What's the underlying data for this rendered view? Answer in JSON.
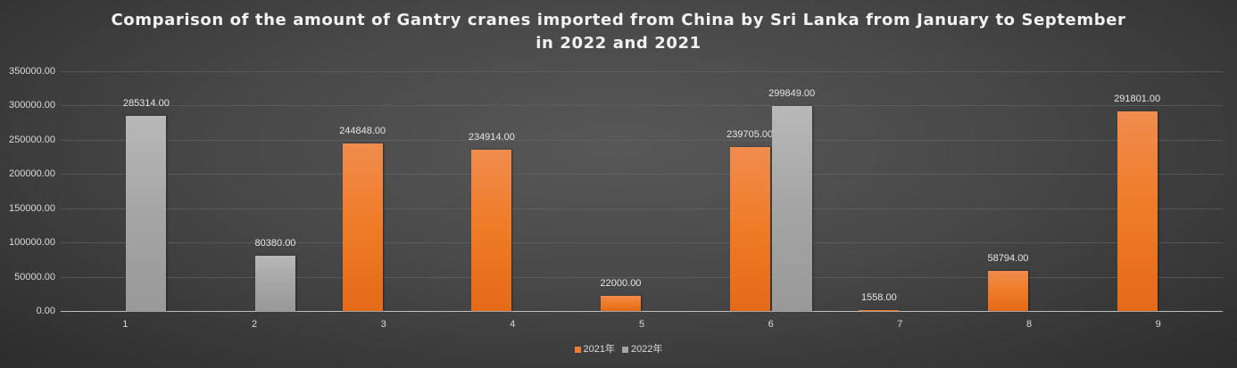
{
  "chart_data": {
    "type": "bar",
    "title": "Comparison of the amount of Gantry cranes imported from China by Sri Lanka from January to September in 2022 and 2021",
    "title_lines": [
      "Comparison of the amount of Gantry cranes imported from China by Sri Lanka from January to September",
      "in 2022 and 2021"
    ],
    "xlabel": "",
    "ylabel": "",
    "categories": [
      "1",
      "2",
      "3",
      "4",
      "5",
      "6",
      "7",
      "8",
      "9"
    ],
    "series": [
      {
        "name": "2021年",
        "color": "#ED7D31",
        "values": [
          null,
          null,
          244848.0,
          234914.0,
          22000.0,
          239705.0,
          1558.0,
          58794.0,
          291801.0
        ]
      },
      {
        "name": "2022年",
        "color": "#A5A5A5",
        "values": [
          285314.0,
          80380.0,
          null,
          null,
          null,
          299849.0,
          null,
          null,
          null
        ]
      }
    ],
    "ylim": [
      0,
      350000
    ],
    "yticks": [
      "0.00",
      "50000.00",
      "100000.00",
      "150000.00",
      "200000.00",
      "250000.00",
      "300000.00",
      "350000.00"
    ],
    "grid": true,
    "legend_position": "bottom",
    "data_labels": [
      {
        "category": "1",
        "series": "2022年",
        "text": "285314.00"
      },
      {
        "category": "2",
        "series": "2022年",
        "text": "80380.00"
      },
      {
        "category": "3",
        "series": "2021年",
        "text": "244848.00"
      },
      {
        "category": "4",
        "series": "2021年",
        "text": "234914.00"
      },
      {
        "category": "5",
        "series": "2021年",
        "text": "22000.00"
      },
      {
        "category": "6",
        "series": "2021年",
        "text": "239705.00"
      },
      {
        "category": "6",
        "series": "2022年",
        "text": "299849.00"
      },
      {
        "category": "7",
        "series": "2021年",
        "text": "1558.00"
      },
      {
        "category": "8",
        "series": "2021年",
        "text": "58794.00"
      },
      {
        "category": "9",
        "series": "2021年",
        "text": "291801.00"
      }
    ]
  },
  "legend": {
    "items": [
      {
        "label": "2021年",
        "color": "#ED7D31"
      },
      {
        "label": "2022年",
        "color": "#A5A5A5"
      }
    ]
  }
}
